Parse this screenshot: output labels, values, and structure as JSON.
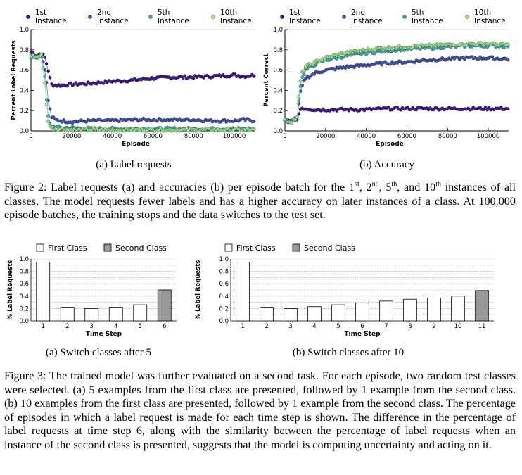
{
  "figure2": {
    "legend": [
      {
        "ord": "1st",
        "word": "Instance",
        "color": "#3b1780"
      },
      {
        "ord": "2nd",
        "word": "Instance",
        "color": "#3c4fa0"
      },
      {
        "ord": "5th",
        "word": "Instance",
        "color": "#3fa6b0"
      },
      {
        "ord": "10th",
        "word": "Instance",
        "color": "#9ae08c"
      }
    ],
    "caption_prefix": "Figure 2: Label requests (a) and accuracies (b) per episode batch for the ",
    "caption_ord1": "1",
    "caption_sup1": "st",
    "caption_sep1": ", ",
    "caption_ord2": "2",
    "caption_sup2": "nd",
    "caption_sep2": ", ",
    "caption_ord3": "5",
    "caption_sup3": "th",
    "caption_sep3": ", and ",
    "caption_ord4": "10",
    "caption_sup4": "th",
    "caption_rest": " instances of all classes. The model requests fewer labels and has a higher accuracy on later instances of a class. At 100,000 episode batches, the training stops and the data switches to the test set."
  },
  "figure3": {
    "legend_first": "First Class",
    "legend_second": "Second Class",
    "caption": "Figure 3: The trained model was further evaluated on a second task. For each episode, two random test classes were selected. (a) 5 examples from the first class are presented, followed by 1 example from the second class. (b) 10 examples from the first class are presented, followed by 1 example from the second class. The percentage of episodes in which a label request is made for each time step is shown. The difference in the percentage of label requests at time step 6, along with the similarity between the percentage of label requests when an instance of the second class is presented, suggests that the model is computing uncertainty and acting on it."
  },
  "chart_data": [
    {
      "type": "scatter",
      "subcaption": "(a) Label requests",
      "xlabel": "Episode",
      "ylabel": "Percent Label Requests",
      "xticks": [
        "0",
        "20000",
        "40000",
        "60000",
        "80000",
        "100000"
      ],
      "yticks": [
        "0.0",
        "0.2",
        "0.4",
        "0.6",
        "0.8",
        "1.0"
      ],
      "xlim": [
        0,
        110000
      ],
      "ylim": [
        0,
        1
      ],
      "series": [
        {
          "name": "1st Instance",
          "color": "#3b1780",
          "x": [
            0,
            3000,
            5000,
            7000,
            9000,
            10000,
            12000,
            15000,
            20000,
            30000,
            40000,
            50000,
            60000,
            70000,
            80000,
            90000,
            100000,
            105000,
            110000
          ],
          "y": [
            0.78,
            0.74,
            0.77,
            0.72,
            0.55,
            0.46,
            0.45,
            0.45,
            0.46,
            0.47,
            0.49,
            0.5,
            0.52,
            0.53,
            0.53,
            0.54,
            0.55,
            0.54,
            0.55
          ]
        },
        {
          "name": "2nd Instance",
          "color": "#3c4fa0",
          "x": [
            0,
            3000,
            5000,
            7000,
            8500,
            10000,
            12000,
            15000,
            20000,
            30000,
            40000,
            50000,
            60000,
            70000,
            80000,
            90000,
            100000,
            105000,
            110000
          ],
          "y": [
            0.75,
            0.73,
            0.76,
            0.6,
            0.3,
            0.14,
            0.11,
            0.1,
            0.09,
            0.1,
            0.1,
            0.11,
            0.11,
            0.11,
            0.11,
            0.1,
            0.1,
            0.11,
            0.1
          ]
        },
        {
          "name": "5th Instance",
          "color": "#3fa6b0",
          "x": [
            0,
            3000,
            5000,
            7000,
            8000,
            9000,
            10000,
            12000,
            15000,
            20000,
            30000,
            40000,
            50000,
            60000,
            70000,
            80000,
            90000,
            100000,
            105000,
            110000
          ],
          "y": [
            0.73,
            0.72,
            0.75,
            0.5,
            0.2,
            0.08,
            0.05,
            0.04,
            0.03,
            0.03,
            0.02,
            0.02,
            0.02,
            0.02,
            0.02,
            0.02,
            0.02,
            0.02,
            0.02,
            0.02
          ]
        },
        {
          "name": "10th Instance",
          "color": "#9ae08c",
          "x": [
            0,
            3000,
            5000,
            7000,
            8000,
            9000,
            10000,
            12000,
            15000,
            20000,
            30000,
            40000,
            50000,
            60000,
            70000,
            80000,
            90000,
            100000,
            105000,
            110000
          ],
          "y": [
            0.74,
            0.73,
            0.76,
            0.45,
            0.15,
            0.06,
            0.03,
            0.02,
            0.02,
            0.01,
            0.01,
            0.01,
            0.01,
            0.01,
            0.01,
            0.01,
            0.01,
            0.01,
            0.01,
            0.01
          ]
        }
      ]
    },
    {
      "type": "scatter",
      "subcaption": "(b) Accuracy",
      "xlabel": "Episode",
      "ylabel": "Percent Correct",
      "xticks": [
        "0",
        "20000",
        "40000",
        "60000",
        "80000",
        "100000"
      ],
      "yticks": [
        "0.0",
        "0.2",
        "0.4",
        "0.6",
        "0.8",
        "1.0"
      ],
      "xlim": [
        0,
        110000
      ],
      "ylim": [
        0,
        1
      ],
      "series": [
        {
          "name": "1st Instance",
          "color": "#3b1780",
          "x": [
            0,
            3000,
            6000,
            7000,
            8000,
            10000,
            15000,
            20000,
            30000,
            40000,
            50000,
            60000,
            70000,
            80000,
            90000,
            100000,
            110000
          ],
          "y": [
            0.1,
            0.1,
            0.12,
            0.18,
            0.23,
            0.22,
            0.21,
            0.21,
            0.21,
            0.21,
            0.22,
            0.22,
            0.22,
            0.22,
            0.22,
            0.22,
            0.22
          ]
        },
        {
          "name": "2nd Instance",
          "color": "#3c4fa0",
          "x": [
            0,
            3000,
            6000,
            7000,
            8000,
            10000,
            15000,
            20000,
            30000,
            40000,
            50000,
            60000,
            70000,
            80000,
            90000,
            100000,
            110000
          ],
          "y": [
            0.1,
            0.09,
            0.12,
            0.3,
            0.42,
            0.52,
            0.57,
            0.6,
            0.63,
            0.65,
            0.67,
            0.68,
            0.7,
            0.71,
            0.72,
            0.72,
            0.71
          ]
        },
        {
          "name": "5th Instance",
          "color": "#3fa6b0",
          "x": [
            0,
            3000,
            6000,
            7000,
            8000,
            10000,
            15000,
            20000,
            30000,
            40000,
            50000,
            60000,
            70000,
            80000,
            90000,
            100000,
            110000
          ],
          "y": [
            0.1,
            0.09,
            0.13,
            0.35,
            0.5,
            0.6,
            0.66,
            0.7,
            0.74,
            0.77,
            0.79,
            0.81,
            0.82,
            0.83,
            0.84,
            0.84,
            0.84
          ]
        },
        {
          "name": "10th Instance",
          "color": "#9ae08c",
          "x": [
            0,
            3000,
            6000,
            7000,
            8000,
            10000,
            15000,
            20000,
            30000,
            40000,
            50000,
            60000,
            70000,
            80000,
            90000,
            100000,
            110000
          ],
          "y": [
            0.1,
            0.09,
            0.13,
            0.38,
            0.55,
            0.63,
            0.68,
            0.72,
            0.77,
            0.8,
            0.82,
            0.83,
            0.84,
            0.85,
            0.86,
            0.86,
            0.85
          ]
        }
      ]
    },
    {
      "type": "bar",
      "subcaption": "(a) Switch classes after 5",
      "xlabel": "Time Step",
      "ylabel": "% Label Requests",
      "yticks": [
        "0.0",
        "0.2",
        "0.4",
        "0.6",
        "0.8",
        "1.0"
      ],
      "ylim": [
        0,
        1
      ],
      "categories": [
        "1",
        "2",
        "3",
        "4",
        "5",
        "6"
      ],
      "values": [
        0.95,
        0.22,
        0.2,
        0.22,
        0.26,
        0.5
      ],
      "classes": [
        "first",
        "first",
        "first",
        "first",
        "first",
        "second"
      ]
    },
    {
      "type": "bar",
      "subcaption": "(b) Switch classes after 10",
      "xlabel": "Time Step",
      "ylabel": "% Label Requests",
      "yticks": [
        "0.0",
        "0.2",
        "0.4",
        "0.6",
        "0.8",
        "1.0"
      ],
      "ylim": [
        0,
        1
      ],
      "categories": [
        "1",
        "2",
        "3",
        "4",
        "5",
        "6",
        "7",
        "8",
        "9",
        "10",
        "11"
      ],
      "values": [
        0.95,
        0.22,
        0.2,
        0.23,
        0.26,
        0.29,
        0.32,
        0.35,
        0.37,
        0.4,
        0.49
      ],
      "classes": [
        "first",
        "first",
        "first",
        "first",
        "first",
        "first",
        "first",
        "first",
        "first",
        "first",
        "second"
      ]
    }
  ]
}
